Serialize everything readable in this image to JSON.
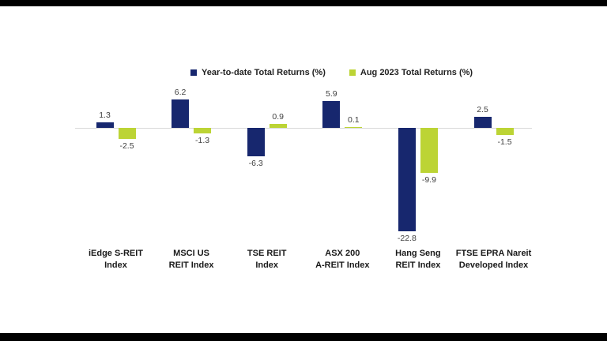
{
  "page": {
    "background": "#ffffff",
    "letterbox_bar_color": "#000000"
  },
  "legend": {
    "items": [
      {
        "label": "Year-to-date Total Returns (%)",
        "color": "#17276e"
      },
      {
        "label": "Aug 2023 Total Returns (%)",
        "color": "#bcd435"
      }
    ]
  },
  "chart_data": {
    "type": "bar",
    "title": "",
    "categories": [
      [
        "iEdge S-REIT",
        "Index"
      ],
      [
        "MSCI US",
        "REIT Index"
      ],
      [
        "TSE REIT",
        "Index"
      ],
      [
        "ASX 200",
        "A-REIT Index"
      ],
      [
        "Hang Seng",
        "REIT Index"
      ],
      [
        "FTSE EPRA Nareit",
        "Developed Index"
      ]
    ],
    "category_keys": [
      "iedge-s-reit",
      "msci-us-reit",
      "tse-reit",
      "asx-200-a-reit",
      "hang-seng-reit",
      "ftse-epra-nareit"
    ],
    "series": [
      {
        "name": "Year-to-date Total Returns (%)",
        "color": "#17276e",
        "values": [
          1.3,
          6.2,
          -6.3,
          5.9,
          -22.8,
          2.5
        ]
      },
      {
        "name": "Aug 2023 Total Returns (%)",
        "color": "#bcd435",
        "values": [
          -2.5,
          -1.3,
          0.9,
          0.1,
          -9.9,
          -1.5
        ]
      }
    ],
    "data_labels": [
      "1.3",
      "6.2",
      "-6.3",
      "5.9",
      "-22.8",
      "2.5",
      "-2.5",
      "-1.3",
      "0.9",
      "0.1",
      "-9.9",
      "-1.5"
    ],
    "ylabel": "",
    "xlabel": "",
    "baseline": 0,
    "grid": false,
    "legend_position": "top",
    "axis_line_color": "#d9d9d9",
    "data_label_color": "#404040"
  }
}
